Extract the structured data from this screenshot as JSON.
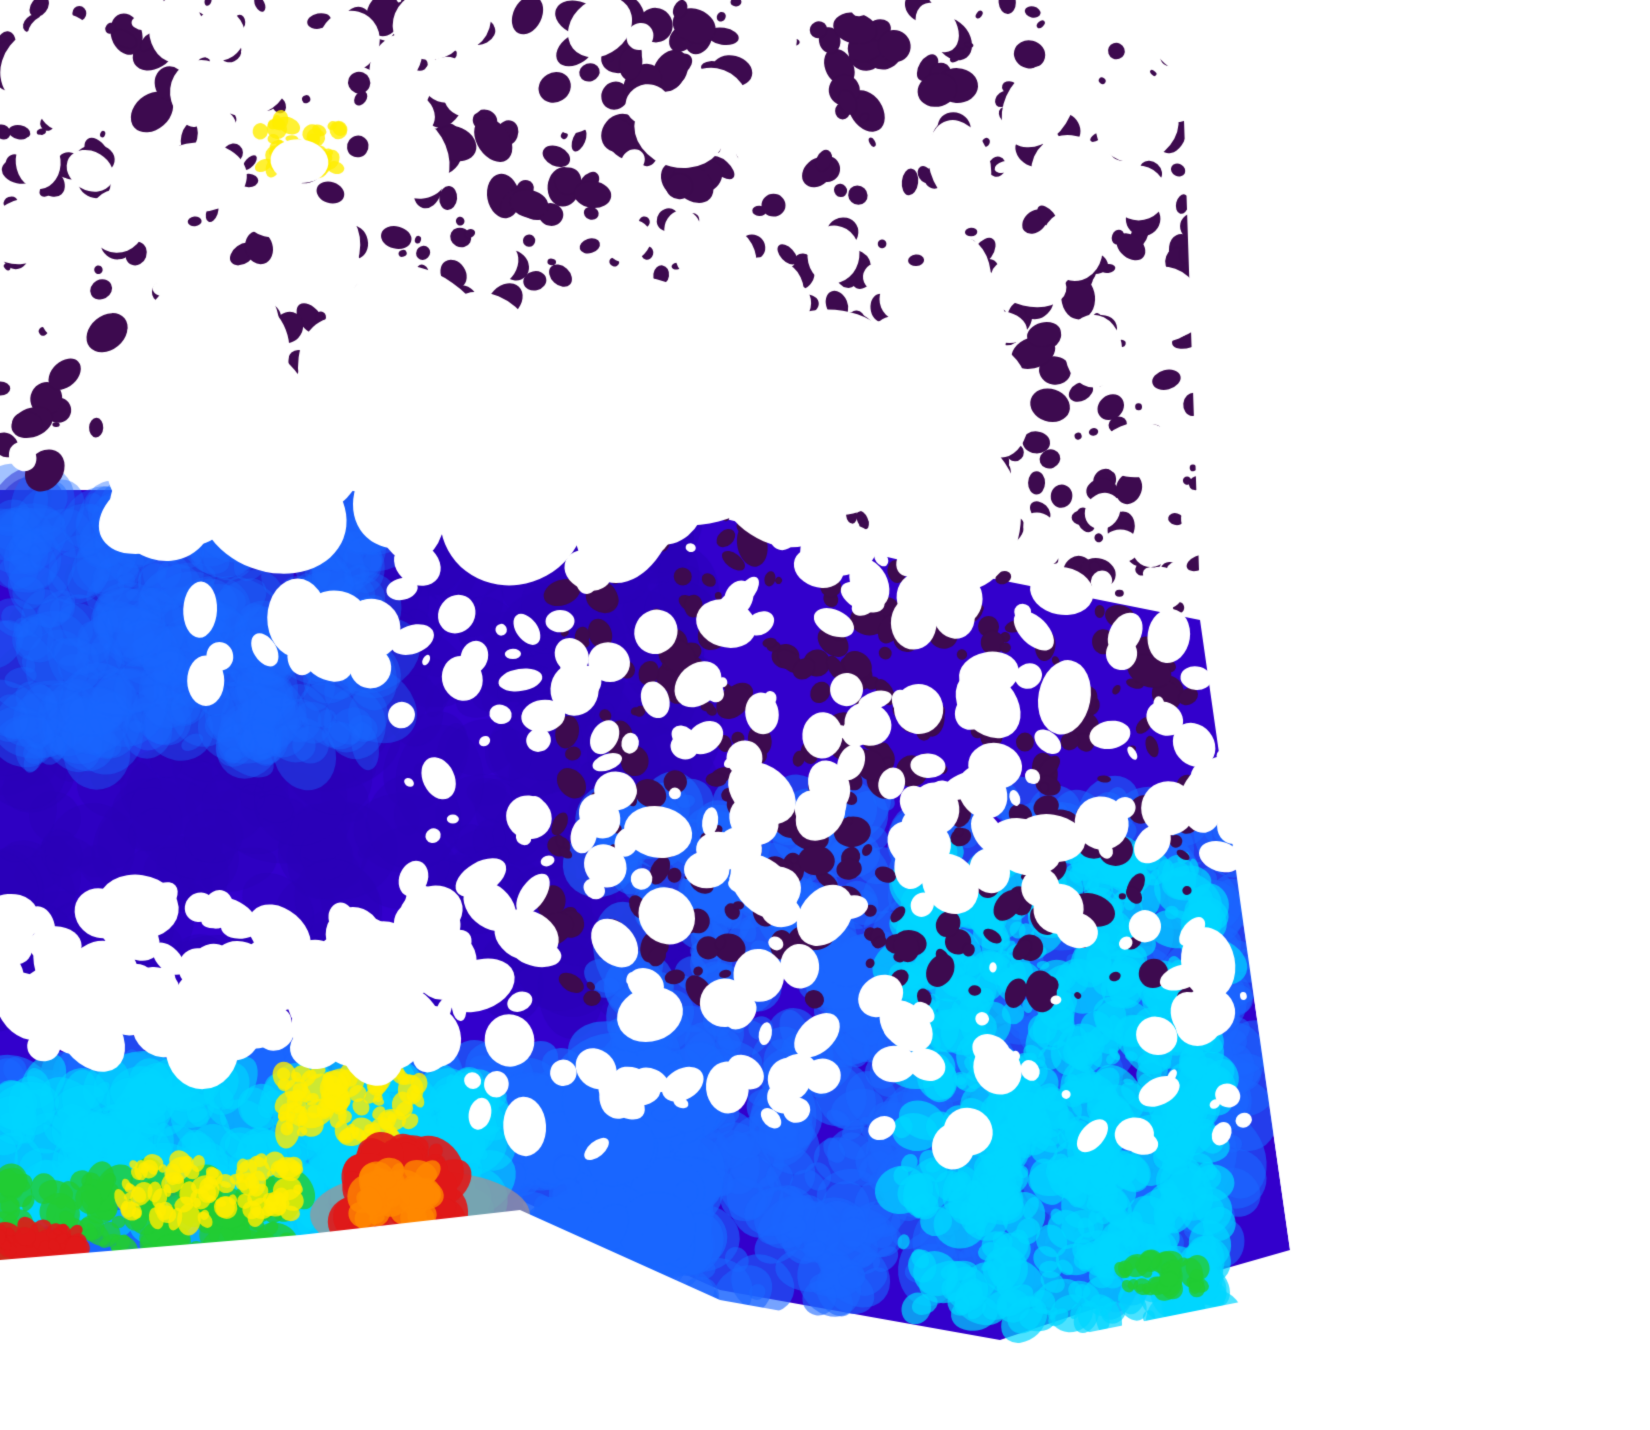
{
  "map": {
    "kind": "satellite chlorophyll concentration composite",
    "background_color": "#ffffff",
    "palette": {
      "very_low": "#3d0a4f",
      "low": "#3300cc",
      "medium_low": "#1a66ff",
      "medium": "#00d5ff",
      "medium_high": "#22cc33",
      "high": "#ffee00",
      "very_high": "#e01818",
      "land_mask": "#a89090",
      "cloud_nodata": "#ffffff"
    }
  }
}
